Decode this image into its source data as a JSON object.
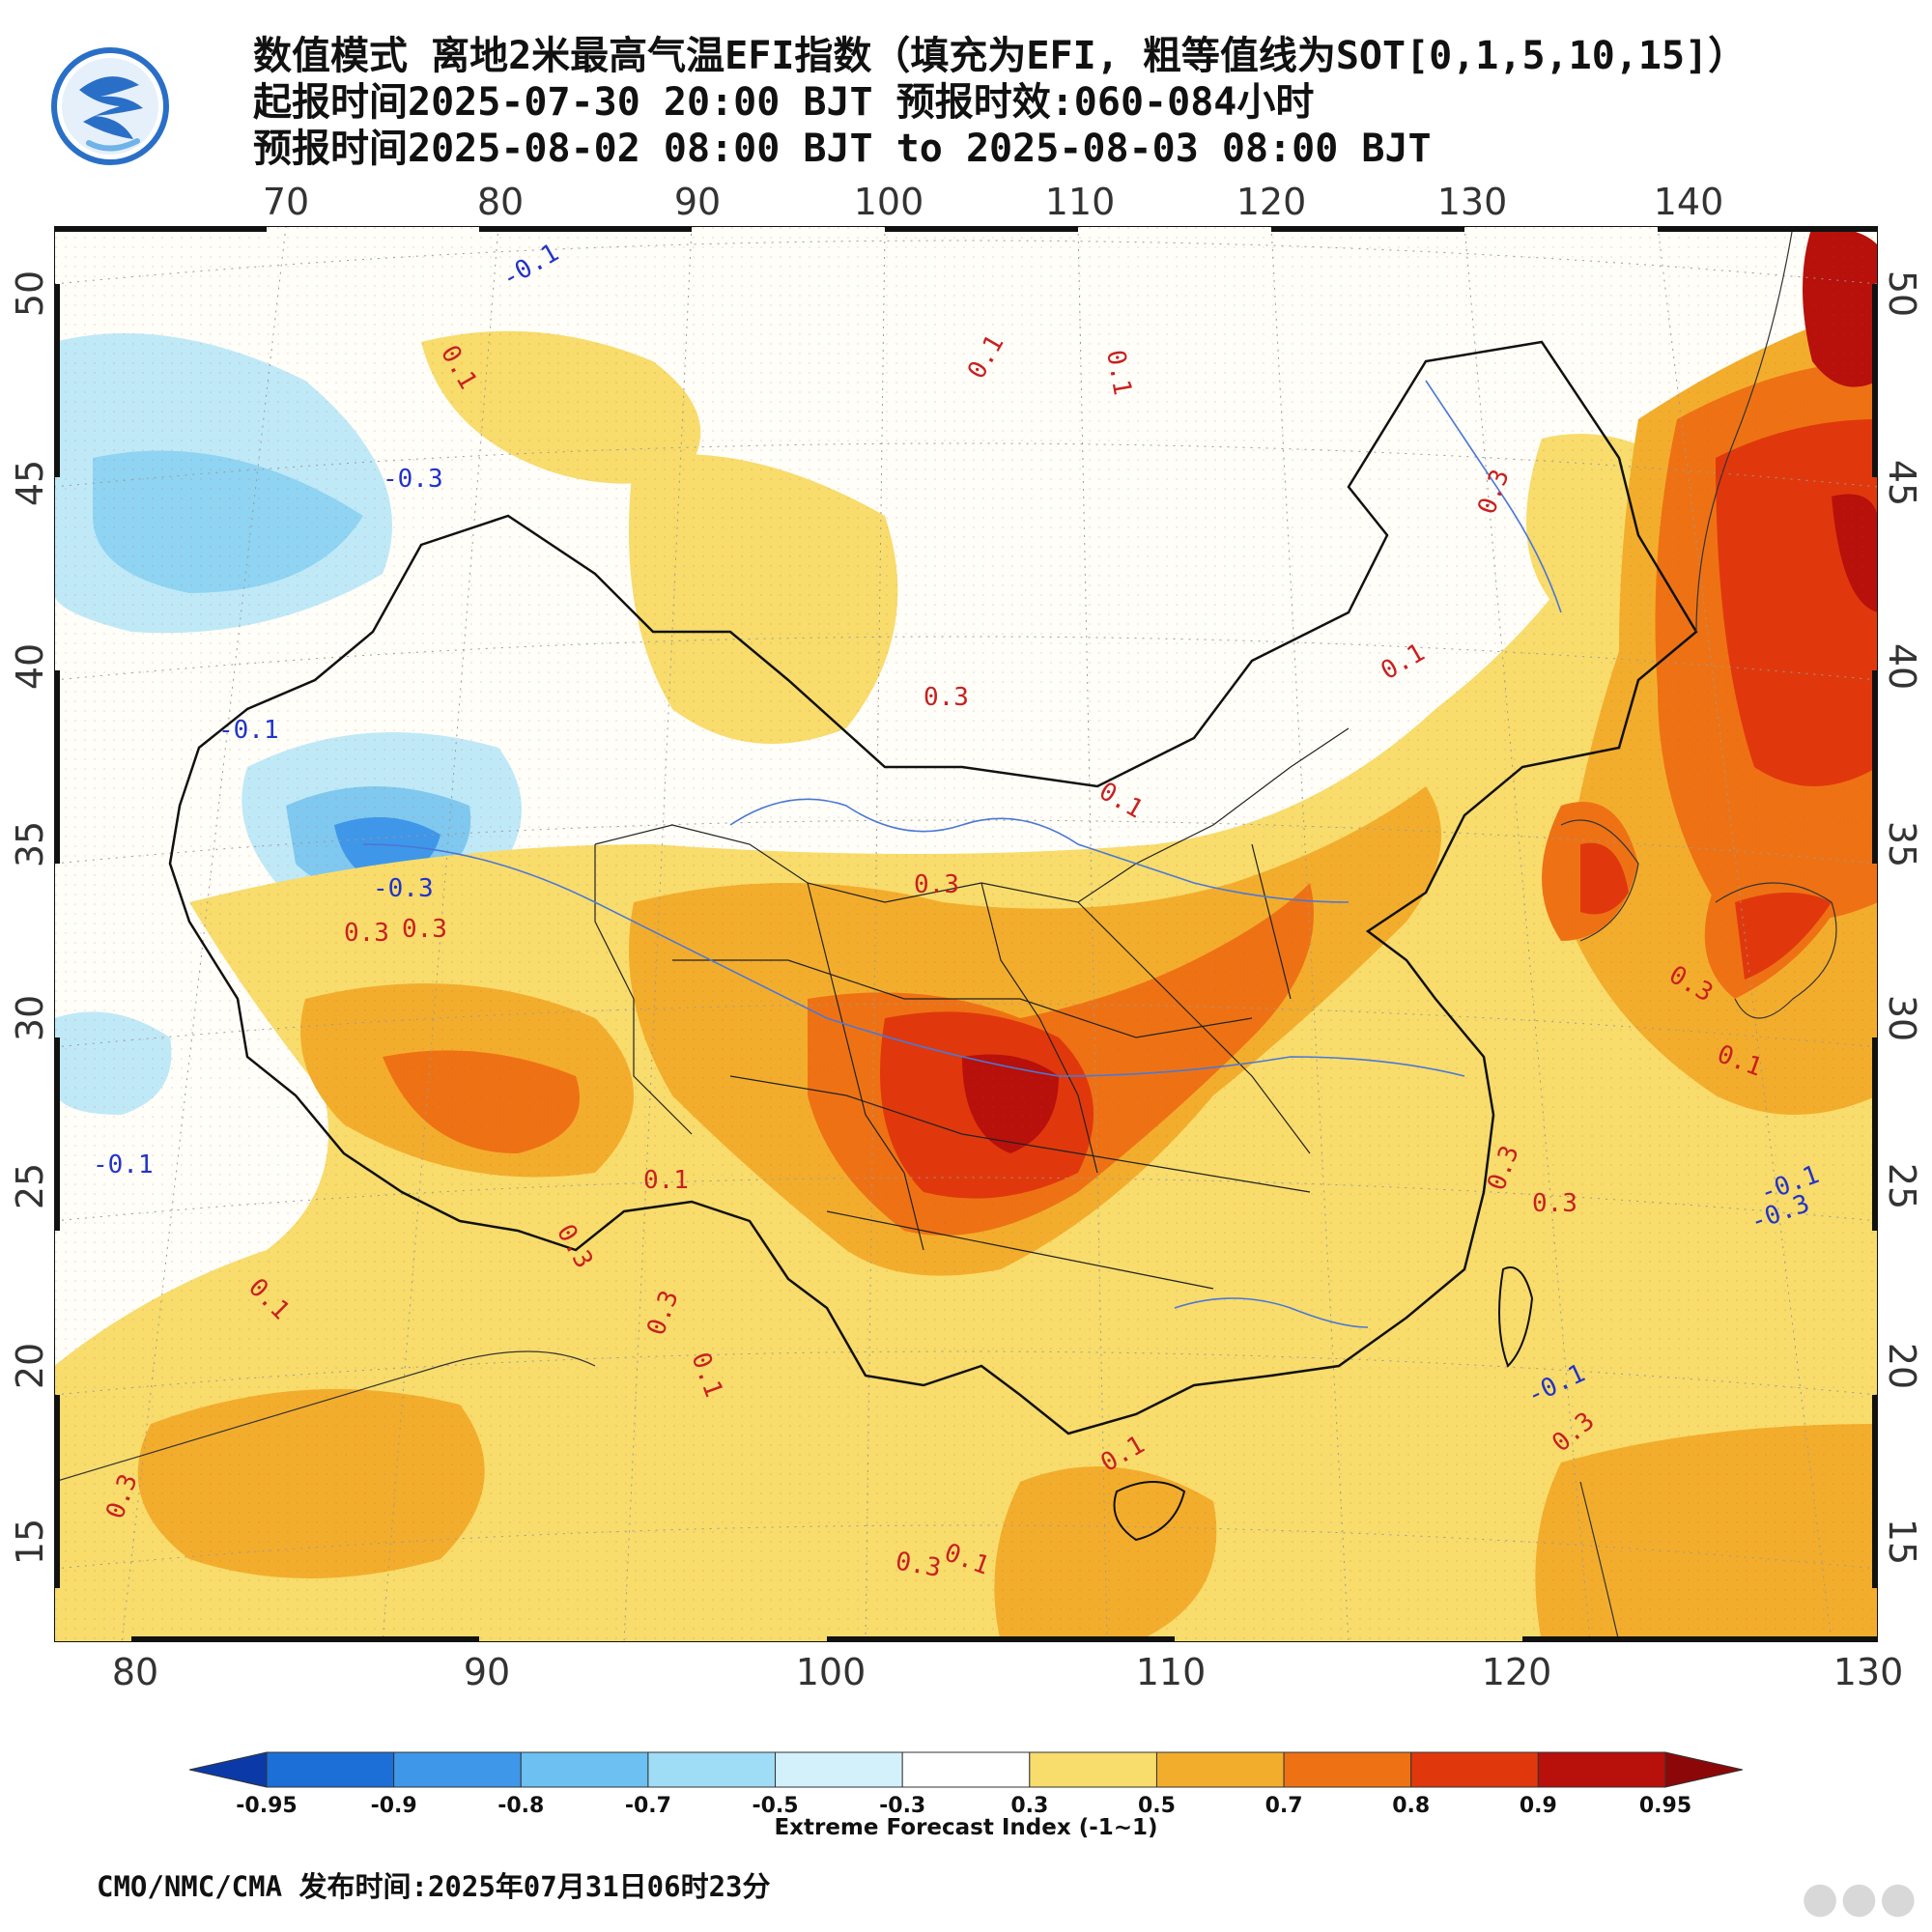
{
  "header": {
    "title_line1": "数值模式 离地2米最高气温EFI指数（填充为EFI, 粗等值线为SOT[0,1,5,10,15]）",
    "title_line2": "起报时间2025-07-30 20:00 BJT 预报时效:060-084小时",
    "title_line3": "预报时间2025-08-02 08:00 BJT to 2025-08-03 08:00 BJT"
  },
  "axes": {
    "top_lon_labels": [
      "70",
      "80",
      "90",
      "100",
      "110",
      "120",
      "130",
      "140"
    ],
    "bottom_lon_labels": [
      "80",
      "90",
      "100",
      "110",
      "120",
      "130"
    ],
    "lat_labels": [
      "50",
      "45",
      "40",
      "35",
      "30",
      "25",
      "20",
      "15"
    ]
  },
  "contour_labels": {
    "blue": [
      "-0.1",
      "-0.3",
      "-0.1",
      "-0.3",
      "-0.1",
      "-0.1",
      "-0.3",
      "-0.1"
    ],
    "red": [
      "0.1",
      "0.1",
      "0.1",
      "0.3",
      "0.1",
      "0.3",
      "0.3",
      "0.3",
      "0.1",
      "0.3",
      "0.1",
      "0.3",
      "0.3",
      "0.1",
      "0.3",
      "0.3",
      "0.1",
      "0.1",
      "0.3",
      "0.3",
      "0.1",
      "0.3",
      "0.1",
      "0.3"
    ]
  },
  "colorbar": {
    "title": "Extreme Forecast Index (-1~1)",
    "ticks": [
      "-0.95",
      "-0.9",
      "-0.8",
      "-0.7",
      "-0.5",
      "-0.3",
      "0.3",
      "0.5",
      "0.7",
      "0.8",
      "0.9",
      "0.95"
    ],
    "colors": [
      "#0b3aa8",
      "#1b6fd6",
      "#3f97ea",
      "#6cc0f2",
      "#9fdcf6",
      "#d3f1fa",
      "#ffffff",
      "#f8dc6c",
      "#f3ad2c",
      "#ee7214",
      "#e0380c",
      "#b8100a",
      "#8c0808"
    ]
  },
  "footer": {
    "text": "CMO/NMC/CMA  发布时间:2025年07月31日06时23分"
  },
  "watermark": "●●●"
}
